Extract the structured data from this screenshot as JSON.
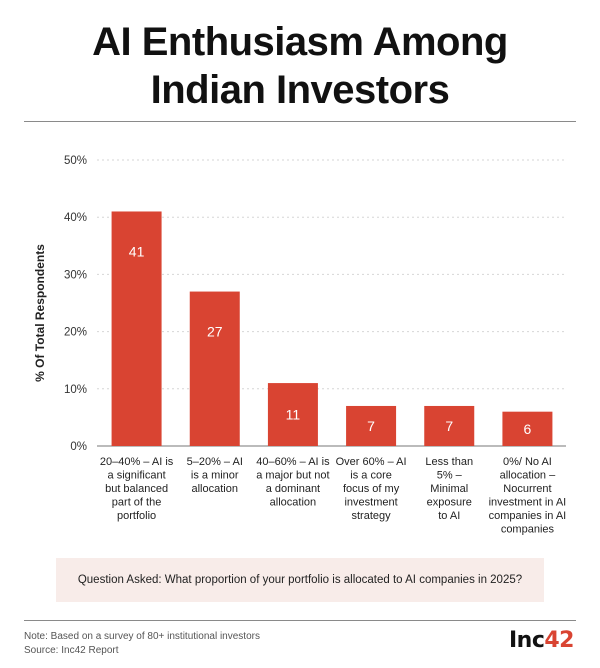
{
  "title_lines": [
    "AI Enthusiasm Among",
    "Indian Investors"
  ],
  "colors": {
    "bar": "#d94432",
    "accent": "#d94432",
    "question_bg": "#f8ece9"
  },
  "chart_data": {
    "type": "bar",
    "ylabel": "% Of Total Respondents",
    "ylim": [
      0,
      50
    ],
    "yticks": [
      0,
      10,
      20,
      30,
      40,
      50
    ],
    "ytick_labels": [
      "0%",
      "10%",
      "20%",
      "30%",
      "40%",
      "50%"
    ],
    "grid": true,
    "categories": [
      "20–40% – AI is a significant but balanced part of the portfolio",
      "5–20% – AI is a minor allocation",
      "40–60% – AI is a major but not a dominant allocation",
      "Over 60% – AI is a core focus of my investment strategy",
      "Less than 5% – Minimal exposure to AI",
      "0%/ No AI allocation – Nocurrent investment in AI companies in AI companies"
    ],
    "category_label_lines": [
      [
        "20–40% – AI is",
        "a significant",
        "but balanced",
        "part of the",
        "portfolio"
      ],
      [
        "5–20% – AI",
        "is a minor",
        "allocation"
      ],
      [
        "40–60% – AI is",
        "a major but not",
        "a dominant",
        "allocation"
      ],
      [
        "Over 60% – AI",
        "is a core",
        "focus of my",
        "investment",
        "strategy"
      ],
      [
        "Less than",
        "5% –",
        "Minimal",
        "exposure",
        "to AI"
      ],
      [
        "0%/ No AI",
        "allocation –",
        "Nocurrent",
        "investment in AI",
        "companies in AI",
        "companies"
      ]
    ],
    "values": [
      41,
      27,
      11,
      7,
      7,
      6
    ],
    "value_labels": [
      "41",
      "27",
      "11",
      "7",
      "7",
      "6"
    ]
  },
  "question": "Question Asked: What proportion of your portfolio is allocated to AI companies in 2025?",
  "note": "Note: Based on a survey of 80+ institutional investors",
  "source": "Source: Inc42 Report",
  "logo": {
    "main": "Inc",
    "accent": "42"
  }
}
